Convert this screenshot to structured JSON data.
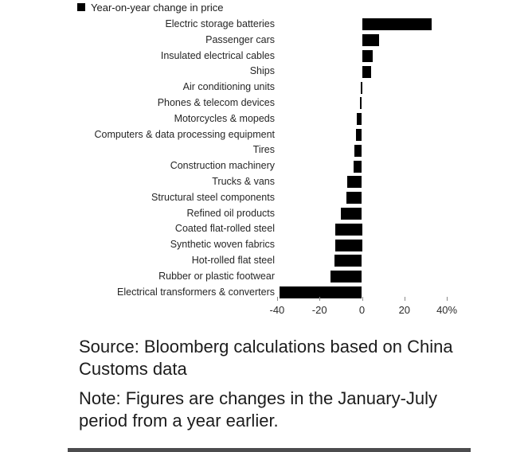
{
  "legend": {
    "label": "Year-on-year change in price",
    "swatch_color": "#000000"
  },
  "chart_data": {
    "type": "bar",
    "orientation": "horizontal",
    "title": "",
    "xlabel": "",
    "ylabel": "",
    "unit": "%",
    "legend_entries": [
      "Year-on-year change in price"
    ],
    "legend_position": "top-left",
    "grid": false,
    "bar_color": "#000000",
    "xlim": [
      -40,
      45
    ],
    "categories": [
      "Electric storage batteries",
      "Passenger cars",
      "Insulated electrical cables",
      "Ships",
      "Air conditioning units",
      "Phones & telecom devices",
      "Motorcycles & mopeds",
      "Computers & data processing equipment",
      "Tires",
      "Construction machinery",
      "Trucks & vans",
      "Structural steel components",
      "Refined oil products",
      "Coated flat-rolled steel",
      "Synthetic woven fabrics",
      "Hot-rolled flat steel",
      "Rubber or plastic footwear",
      "Electrical transformers & converters"
    ],
    "values": [
      33,
      8,
      5,
      4.5,
      -0.5,
      -1,
      -2.5,
      -3,
      -3.5,
      -4,
      -7,
      -7.5,
      -10,
      -12.5,
      -12.5,
      -13,
      -15,
      -39
    ],
    "x_ticks": [
      {
        "value": -40,
        "label": "-40"
      },
      {
        "value": -20,
        "label": "-20"
      },
      {
        "value": 0,
        "label": "0"
      },
      {
        "value": 20,
        "label": "20"
      },
      {
        "value": 40,
        "label": "40%"
      }
    ]
  },
  "source": {
    "text": "Source: Bloomberg calculations based on China Customs data"
  },
  "note": {
    "text": "Note: Figures are changes in the January-July period from a year earlier."
  }
}
